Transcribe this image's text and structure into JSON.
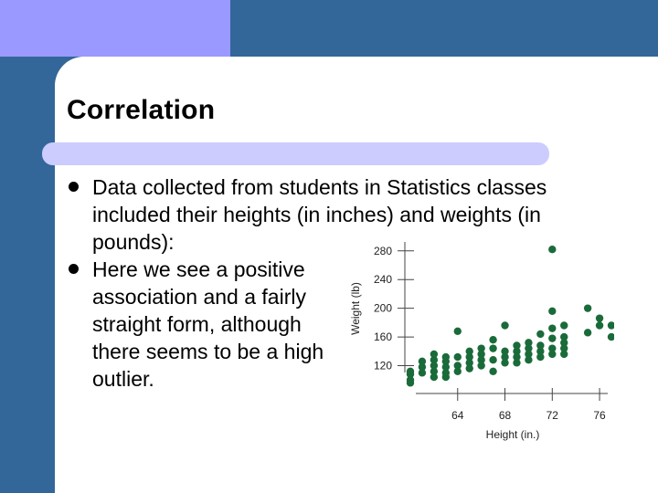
{
  "slide": {
    "title": "Correlation",
    "bullets": [
      "Data collected from students in Statistics classes included their heights (in inches) and weights (in pounds):",
      "Here we see a positive association and a fairly straight form, although there seems to be a high outlier."
    ]
  },
  "colors": {
    "background": "#336699",
    "tab": "#9999ff",
    "rule": "#ccccff",
    "point": "#1a6b3a"
  },
  "chart_data": {
    "type": "scatter",
    "xlabel": "Height (in.)",
    "ylabel": "Weight (lb)",
    "xlim": [
      60,
      77
    ],
    "ylim": [
      85,
      295
    ],
    "xticks": [
      64,
      68,
      72,
      76
    ],
    "yticks": [
      120,
      160,
      200,
      240,
      280
    ],
    "grid": false,
    "points": [
      [
        60,
        96
      ],
      [
        60,
        100
      ],
      [
        60,
        108
      ],
      [
        60,
        112
      ],
      [
        61,
        110
      ],
      [
        61,
        118
      ],
      [
        61,
        126
      ],
      [
        62,
        104
      ],
      [
        62,
        112
      ],
      [
        62,
        120
      ],
      [
        62,
        128
      ],
      [
        62,
        136
      ],
      [
        63,
        104
      ],
      [
        63,
        110
      ],
      [
        63,
        118
      ],
      [
        63,
        126
      ],
      [
        63,
        132
      ],
      [
        64,
        112
      ],
      [
        64,
        120
      ],
      [
        64,
        132
      ],
      [
        64,
        168
      ],
      [
        65,
        116
      ],
      [
        65,
        124
      ],
      [
        65,
        132
      ],
      [
        65,
        140
      ],
      [
        66,
        120
      ],
      [
        66,
        128
      ],
      [
        66,
        136
      ],
      [
        66,
        144
      ],
      [
        67,
        112
      ],
      [
        67,
        128
      ],
      [
        67,
        144
      ],
      [
        67,
        156
      ],
      [
        68,
        124
      ],
      [
        68,
        132
      ],
      [
        68,
        140
      ],
      [
        68,
        176
      ],
      [
        69,
        124
      ],
      [
        69,
        132
      ],
      [
        69,
        140
      ],
      [
        69,
        148
      ],
      [
        70,
        128
      ],
      [
        70,
        136
      ],
      [
        70,
        144
      ],
      [
        70,
        152
      ],
      [
        71,
        132
      ],
      [
        71,
        140
      ],
      [
        71,
        148
      ],
      [
        71,
        164
      ],
      [
        72,
        136
      ],
      [
        72,
        144
      ],
      [
        72,
        158
      ],
      [
        72,
        172
      ],
      [
        72,
        196
      ],
      [
        72,
        282
      ],
      [
        73,
        136
      ],
      [
        73,
        144
      ],
      [
        73,
        152
      ],
      [
        73,
        160
      ],
      [
        73,
        176
      ],
      [
        75,
        166
      ],
      [
        75,
        200
      ],
      [
        76,
        176
      ],
      [
        76,
        186
      ],
      [
        77,
        160
      ],
      [
        77,
        176
      ]
    ]
  }
}
